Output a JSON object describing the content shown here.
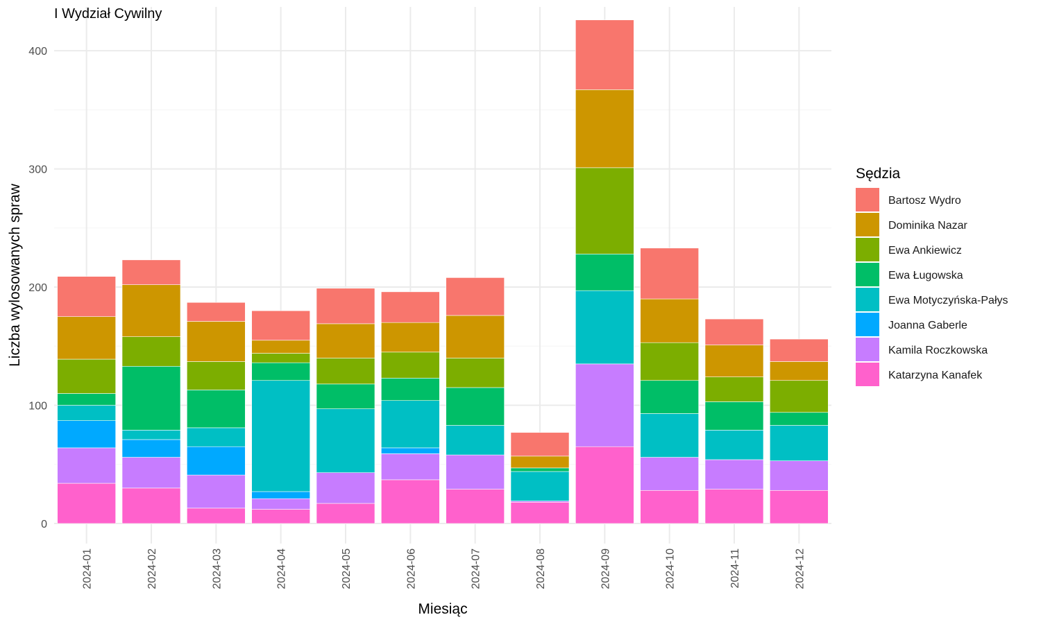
{
  "chart_data": {
    "type": "bar",
    "stacked": true,
    "title": "I Wydział Cywilny",
    "xlabel": "Miesiąc",
    "ylabel": "Liczba wylosowanych spraw",
    "ylim": [
      -17,
      437
    ],
    "yticks": [
      0,
      100,
      200,
      300,
      400
    ],
    "grid": true,
    "legend_title": "Sędzia",
    "legend_position": "right",
    "categories": [
      "2024-01",
      "2024-02",
      "2024-03",
      "2024-04",
      "2024-05",
      "2024-06",
      "2024-07",
      "2024-08",
      "2024-09",
      "2024-10",
      "2024-11",
      "2024-12"
    ],
    "series": [
      {
        "name": "Katarzyna Kanafek",
        "color": "#FF61CC",
        "values": [
          34,
          30,
          13,
          12,
          17,
          37,
          29,
          18,
          65,
          28,
          29,
          28
        ]
      },
      {
        "name": "Kamila Roczkowska",
        "color": "#C77CFF",
        "values": [
          30,
          26,
          28,
          9,
          26,
          22,
          29,
          1,
          70,
          28,
          25,
          25
        ]
      },
      {
        "name": "Joanna Gaberle",
        "color": "#00A9FF",
        "values": [
          23,
          15,
          24,
          6,
          0,
          5,
          0,
          0,
          0,
          0,
          0,
          0
        ]
      },
      {
        "name": "Ewa Motyczyńska-Pałys",
        "color": "#00BFC4",
        "values": [
          13,
          8,
          16,
          94,
          54,
          40,
          25,
          25,
          62,
          37,
          25,
          30
        ]
      },
      {
        "name": "Ewa Ługowska",
        "color": "#00BE67",
        "values": [
          10,
          54,
          32,
          15,
          21,
          19,
          32,
          3,
          31,
          28,
          24,
          11
        ]
      },
      {
        "name": "Ewa Ankiewicz",
        "color": "#7CAE00",
        "values": [
          29,
          25,
          24,
          8,
          22,
          22,
          25,
          0,
          73,
          32,
          21,
          27
        ]
      },
      {
        "name": "Dominika Nazar",
        "color": "#CD9600",
        "values": [
          36,
          44,
          34,
          11,
          29,
          25,
          36,
          10,
          66,
          37,
          27,
          16
        ]
      },
      {
        "name": "Bartosz Wydro",
        "color": "#F8766D",
        "values": [
          34,
          21,
          16,
          25,
          30,
          26,
          32,
          20,
          59,
          43,
          22,
          19
        ]
      }
    ],
    "legend_order": [
      "Bartosz Wydro",
      "Dominika Nazar",
      "Ewa Ankiewicz",
      "Ewa Ługowska",
      "Ewa Motyczyńska-Pałys",
      "Joanna Gaberle",
      "Kamila Roczkowska",
      "Katarzyna Kanafek"
    ]
  }
}
